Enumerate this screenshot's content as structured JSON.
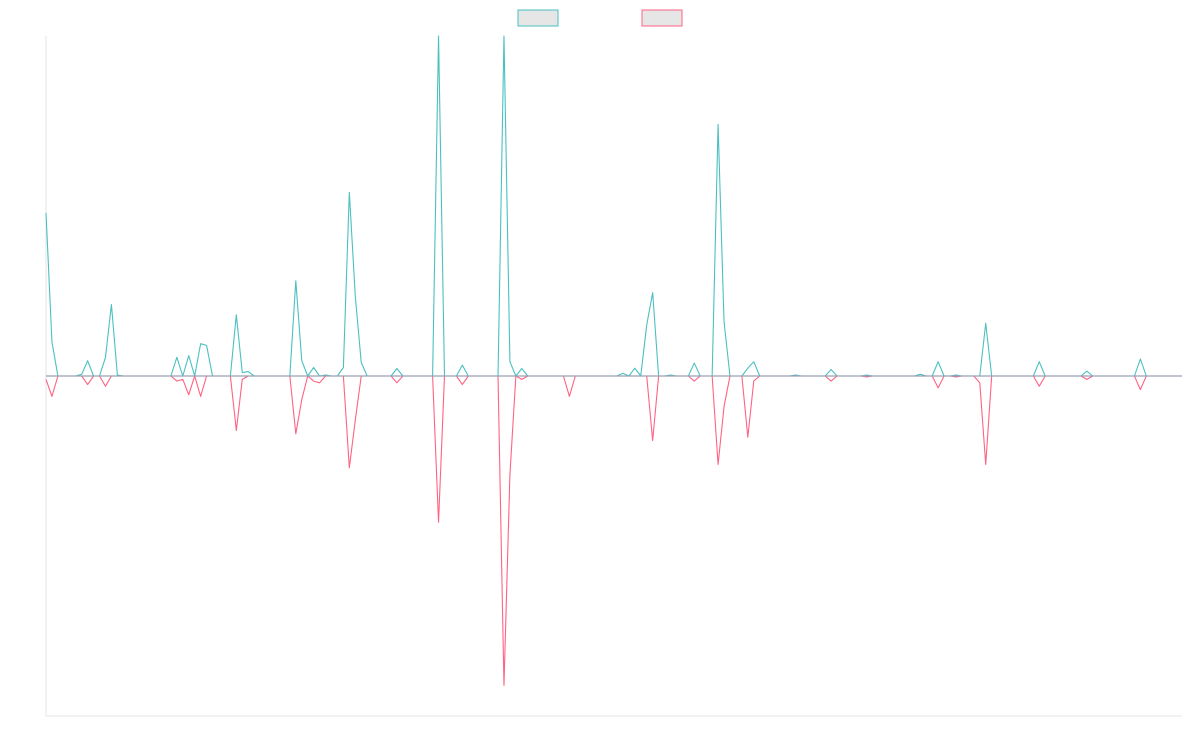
{
  "chart_data": {
    "type": "line",
    "title": "",
    "xlabel": "",
    "ylabel": "",
    "grid": false,
    "legend_position": "top-center",
    "ylim": [
      -100,
      100
    ],
    "baseline": 0,
    "point_count": 192,
    "series": [
      {
        "name": "",
        "color": "#4bc0c0",
        "fill": "#e6e6e6",
        "direction": "up",
        "peaks": [
          [
            0,
            48
          ],
          [
            1,
            10
          ],
          [
            2,
            0
          ],
          [
            3,
            0
          ],
          [
            4,
            0
          ],
          [
            5,
            0
          ],
          [
            6,
            0.5
          ],
          [
            7,
            4.5
          ],
          [
            10,
            5.5
          ],
          [
            11,
            21
          ],
          [
            12,
            0.3
          ],
          [
            22,
            5.5
          ],
          [
            24,
            6
          ],
          [
            26,
            9.5
          ],
          [
            27,
            9
          ],
          [
            32,
            18
          ],
          [
            33,
            1
          ],
          [
            34,
            1.3
          ],
          [
            42,
            28
          ],
          [
            43,
            4.5
          ],
          [
            45,
            2.5
          ],
          [
            47,
            0.3
          ],
          [
            50,
            2.5
          ],
          [
            51,
            54
          ],
          [
            52,
            23.5
          ],
          [
            53,
            4
          ],
          [
            59,
            2.2
          ],
          [
            66,
            100
          ],
          [
            70,
            3.2
          ],
          [
            77,
            100
          ],
          [
            78,
            4.2
          ],
          [
            80,
            2.2
          ],
          [
            97,
            0.8
          ],
          [
            99,
            2.3
          ],
          [
            101,
            15
          ],
          [
            102,
            24.5
          ],
          [
            105,
            0.3
          ],
          [
            109,
            3.8
          ],
          [
            113,
            74
          ],
          [
            114,
            16
          ],
          [
            118,
            2.3
          ],
          [
            119,
            4.2
          ],
          [
            126,
            0.3
          ],
          [
            132,
            1.9
          ],
          [
            138,
            0.3
          ],
          [
            147,
            0.5
          ],
          [
            150,
            4.2
          ],
          [
            153,
            0.3
          ],
          [
            158,
            15.5
          ],
          [
            167,
            4.2
          ],
          [
            175,
            1.4
          ],
          [
            184,
            5
          ]
        ]
      },
      {
        "name": "",
        "color": "#ff6384",
        "fill": "#e6e6e6",
        "direction": "down",
        "peaks": [
          [
            0,
            1
          ],
          [
            1,
            6
          ],
          [
            7,
            2.5
          ],
          [
            10,
            3
          ],
          [
            22,
            1.5
          ],
          [
            23,
            1
          ],
          [
            24,
            5.5
          ],
          [
            26,
            6
          ],
          [
            32,
            16
          ],
          [
            33,
            1
          ],
          [
            42,
            17
          ],
          [
            43,
            7
          ],
          [
            45,
            1.5
          ],
          [
            46,
            2
          ],
          [
            51,
            27
          ],
          [
            52,
            13
          ],
          [
            59,
            2
          ],
          [
            66,
            43
          ],
          [
            70,
            2.5
          ],
          [
            77,
            91
          ],
          [
            78,
            29
          ],
          [
            80,
            1
          ],
          [
            88,
            6
          ],
          [
            102,
            19
          ],
          [
            109,
            1.5
          ],
          [
            113,
            26
          ],
          [
            114,
            9
          ],
          [
            118,
            18
          ],
          [
            119,
            1.5
          ],
          [
            132,
            1.5
          ],
          [
            138,
            0.3
          ],
          [
            150,
            3.5
          ],
          [
            153,
            0.3
          ],
          [
            157,
            2
          ],
          [
            158,
            26
          ],
          [
            167,
            3
          ],
          [
            175,
            1
          ],
          [
            184,
            4
          ]
        ]
      }
    ]
  }
}
